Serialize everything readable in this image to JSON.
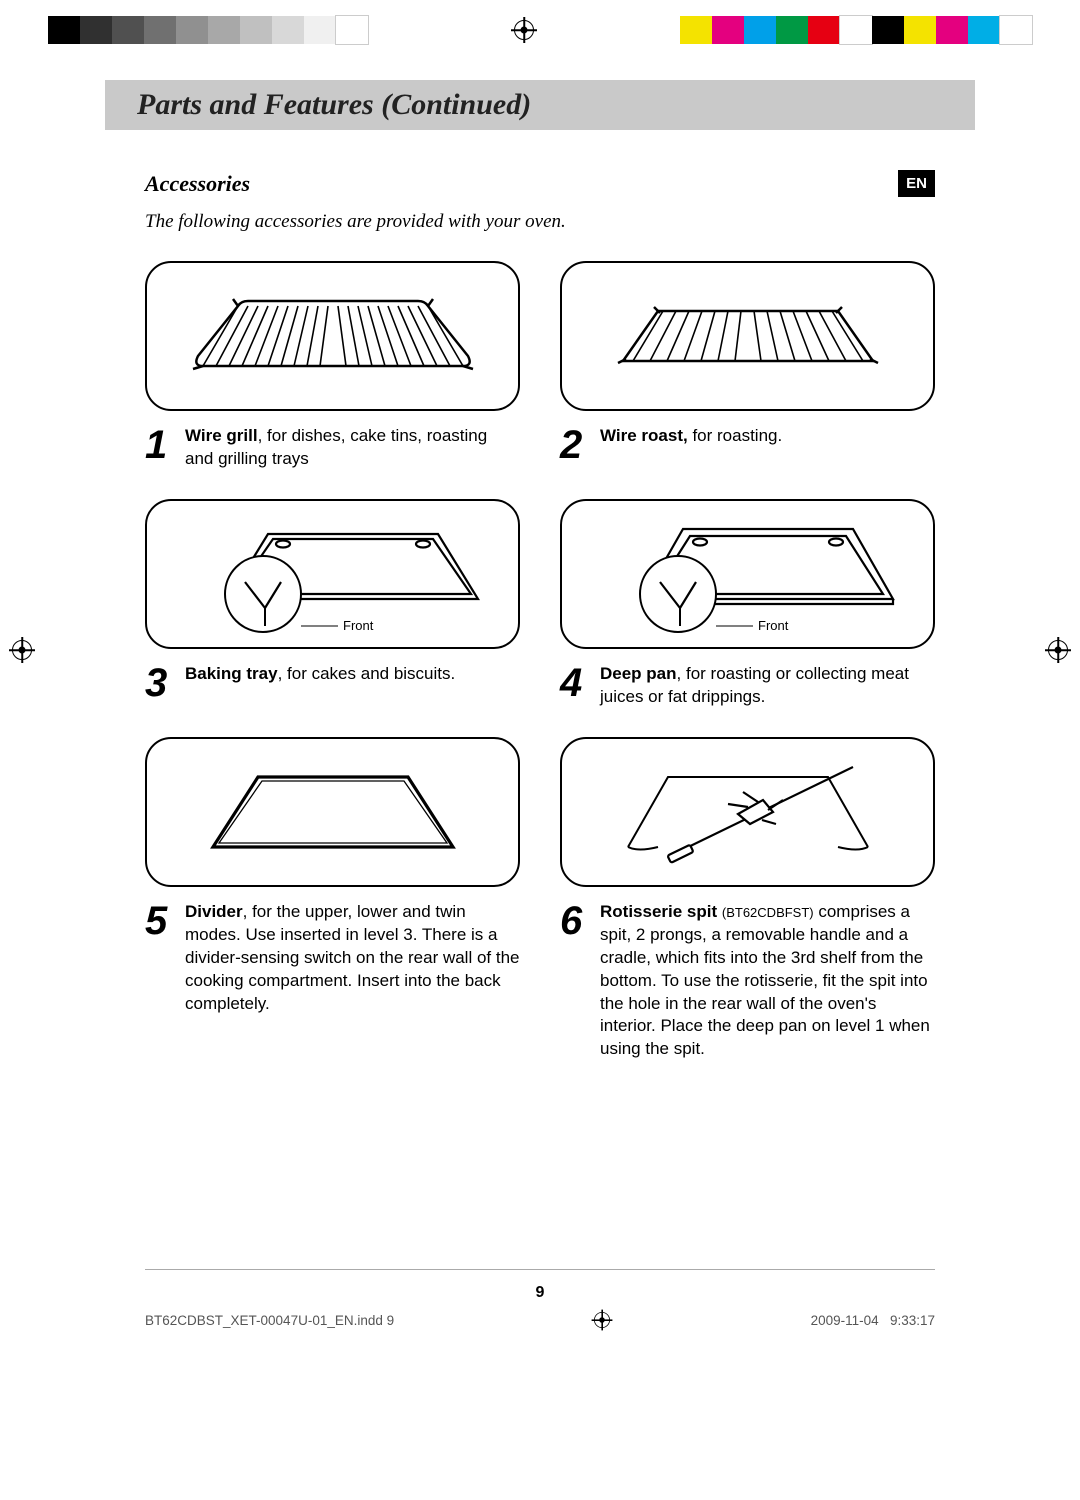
{
  "print": {
    "gray_bars": [
      "#000000",
      "#303030",
      "#505050",
      "#707070",
      "#909090",
      "#a8a8a8",
      "#c0c0c0",
      "#d8d8d8",
      "#f0f0f0",
      "#ffffff"
    ],
    "color_bars": [
      "#f4e300",
      "#e4007f",
      "#00a0e9",
      "#009944",
      "#e60012",
      "#ffffff",
      "#000000",
      "#f4e300",
      "#e4007f",
      "#00aee6",
      "#ffffff"
    ]
  },
  "header": {
    "section_title": "Parts and Features (Continued)",
    "subheading": "Accessories",
    "lang_badge": "EN",
    "intro": "The following accessories are provided with your oven."
  },
  "items": [
    {
      "n": "1",
      "bold": "Wire grill",
      "rest": ", for dishes, cake tins, roasting and grilling trays",
      "front_label": ""
    },
    {
      "n": "2",
      "bold": "Wire roast,",
      "rest": " for roasting.",
      "front_label": ""
    },
    {
      "n": "3",
      "bold": "Baking tray",
      "rest": ", for cakes and biscuits.",
      "front_label": "Front"
    },
    {
      "n": "4",
      "bold": "Deep pan",
      "rest": ", for roasting or collecting meat juices or fat drippings.",
      "front_label": "Front"
    },
    {
      "n": "5",
      "bold": "Divider",
      "rest": ", for the upper, lower and twin modes. Use inserted in level 3. There is a divider-sensing switch on the rear wall of the cooking compartment. Insert into the back completely.",
      "front_label": ""
    },
    {
      "n": "6",
      "bold": "Rotisserie spit",
      "code": "(BT62CDBFST)",
      "rest": " comprises a spit, 2 prongs, a removable handle and a cradle, which fits into the 3rd shelf from the bottom. To use the rotisserie, fit the spit into the hole in the rear wall of the oven's interior. Place the deep pan on level 1 when using the spit.",
      "front_label": ""
    }
  ],
  "footer": {
    "page_number": "9",
    "indd": "BT62CDBST_XET-00047U-01_EN.indd   9",
    "date": "2009-11-04",
    "time": "9:33:17"
  }
}
